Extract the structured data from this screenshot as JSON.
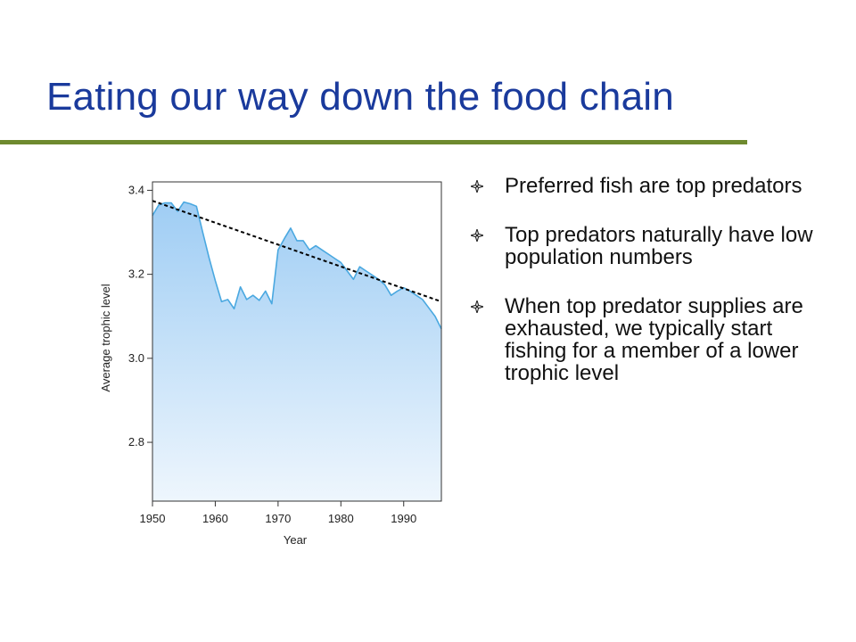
{
  "slide": {
    "title": "Eating our way down the food chain"
  },
  "bullets": [
    {
      "text": "Preferred fish are top predators",
      "icon": "four-petal-diamond-icon"
    },
    {
      "text": "Top predators naturally have low population numbers",
      "icon": "four-petal-diamond-icon"
    },
    {
      "text": "When top predator supplies are exhausted, we typically start fishing for a member of a lower trophic level",
      "icon": "four-petal-diamond-icon"
    }
  ],
  "colors": {
    "title": "#1a3a9c",
    "rule": "#6e8a2e",
    "area_top": "#9fcdf4",
    "area_bottom": "#eef6fd",
    "line": "#4aa8e0",
    "trend": "#000000"
  },
  "chart_data": {
    "type": "area",
    "xlabel": "Year",
    "ylabel": "Average trophic level",
    "xlim": [
      1950,
      1996
    ],
    "ylim": [
      2.66,
      3.42
    ],
    "xticks": [
      1950,
      1960,
      1970,
      1980,
      1990
    ],
    "xtick_labels": [
      "1950",
      "1960",
      "1970",
      "1980",
      "1990"
    ],
    "yticks": [
      2.8,
      3.0,
      3.2,
      3.4
    ],
    "ytick_labels": [
      "2.8",
      "3.0",
      "3.2",
      "3.4"
    ],
    "grid": false,
    "legend": "none",
    "series": [
      {
        "x": [
          1950,
          1951,
          1952,
          1953,
          1954,
          1955,
          1956,
          1957,
          1958,
          1959,
          1960,
          1961,
          1962,
          1963,
          1964,
          1965,
          1966,
          1967,
          1968,
          1969,
          1970,
          1971,
          1972,
          1973,
          1974,
          1975,
          1976,
          1977,
          1978,
          1979,
          1980,
          1981,
          1982,
          1983,
          1984,
          1985,
          1986,
          1987,
          1988,
          1989,
          1990,
          1991,
          1992,
          1993,
          1994,
          1995,
          1996
        ],
        "y": [
          3.34,
          3.365,
          3.37,
          3.37,
          3.35,
          3.372,
          3.368,
          3.362,
          3.3,
          3.24,
          3.185,
          3.135,
          3.14,
          3.118,
          3.17,
          3.14,
          3.15,
          3.138,
          3.16,
          3.13,
          3.258,
          3.285,
          3.31,
          3.28,
          3.28,
          3.258,
          3.268,
          3.258,
          3.248,
          3.238,
          3.228,
          3.208,
          3.188,
          3.218,
          3.208,
          3.198,
          3.188,
          3.175,
          3.15,
          3.16,
          3.168,
          3.16,
          3.15,
          3.14,
          3.12,
          3.1,
          3.07
        ]
      },
      {
        "x": [
          1950,
          1996
        ],
        "y": [
          3.375,
          3.135
        ]
      }
    ]
  }
}
